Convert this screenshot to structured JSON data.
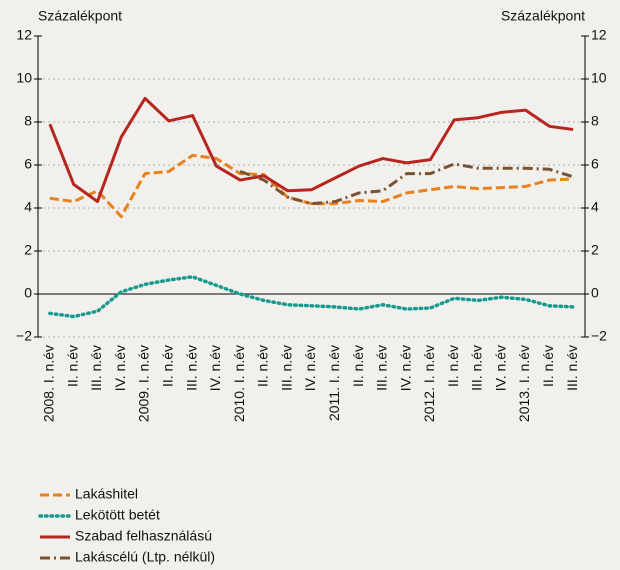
{
  "chart_data": {
    "type": "line",
    "y_label": "Százalékpont",
    "y2_label": "Százalékpont",
    "categories": [
      "2008. I. n.év",
      "II. n.év",
      "III. n.év",
      "IV. n.év",
      "2009. I. n.év",
      "II. n.év",
      "III. n.év",
      "IV. n.év",
      "2010. I. n.év",
      "II. n.év",
      "III. n.év",
      "IV. n.év",
      "2011. I. n.év",
      "II. n.év",
      "III. n.év",
      "IV. n.év",
      "2012. I. n.év",
      "II. n.év",
      "III. n.év",
      "IV. n.év",
      "2013. I. n.év",
      "II. n.év",
      "III. n.év"
    ],
    "series": [
      {
        "name": "Lakáshitel",
        "color": "#e8821e",
        "style": "dash",
        "values": [
          4.45,
          4.3,
          4.8,
          3.6,
          5.6,
          5.7,
          6.45,
          6.3,
          5.6,
          5.55,
          4.5,
          4.2,
          4.2,
          4.35,
          4.3,
          4.7,
          4.85,
          5.0,
          4.9,
          4.95,
          5.0,
          5.3,
          5.35
        ]
      },
      {
        "name": "Lekötött betét",
        "color": "#1a9a8e",
        "style": "dot",
        "values": [
          -0.9,
          -1.05,
          -0.8,
          0.1,
          0.45,
          0.65,
          0.8,
          0.4,
          0.0,
          -0.3,
          -0.5,
          -0.55,
          -0.6,
          -0.7,
          -0.5,
          -0.7,
          -0.65,
          -0.2,
          -0.3,
          -0.15,
          -0.25,
          -0.55,
          -0.6
        ]
      },
      {
        "name": "Szabad felhasználású",
        "color": "#b5261e",
        "style": "solid",
        "values": [
          7.9,
          5.1,
          4.3,
          7.3,
          9.1,
          8.05,
          8.3,
          5.95,
          5.3,
          5.5,
          4.8,
          4.85,
          5.4,
          5.95,
          6.3,
          6.1,
          6.25,
          8.1,
          8.2,
          8.45,
          8.55,
          7.8,
          7.65
        ]
      },
      {
        "name": "Lakáscélú (Ltp. nélkül)",
        "color": "#7a5230",
        "style": "dashdot",
        "values": [
          null,
          null,
          null,
          null,
          null,
          null,
          null,
          null,
          5.7,
          5.3,
          4.5,
          4.2,
          4.3,
          4.7,
          4.8,
          5.6,
          5.6,
          6.05,
          5.85,
          5.85,
          5.85,
          5.8,
          5.45
        ]
      }
    ],
    "ylim": [
      -2,
      12
    ],
    "yticks": [
      {
        "value": -2,
        "label": "−2"
      },
      0,
      2,
      4,
      6,
      8,
      10,
      12
    ],
    "y2lim": [
      -2,
      12
    ],
    "y2ticks": [
      {
        "value": -2,
        "label": "−2"
      },
      0,
      2,
      4,
      6,
      8,
      10,
      12
    ],
    "grid": true,
    "legend": "bottom-left"
  }
}
